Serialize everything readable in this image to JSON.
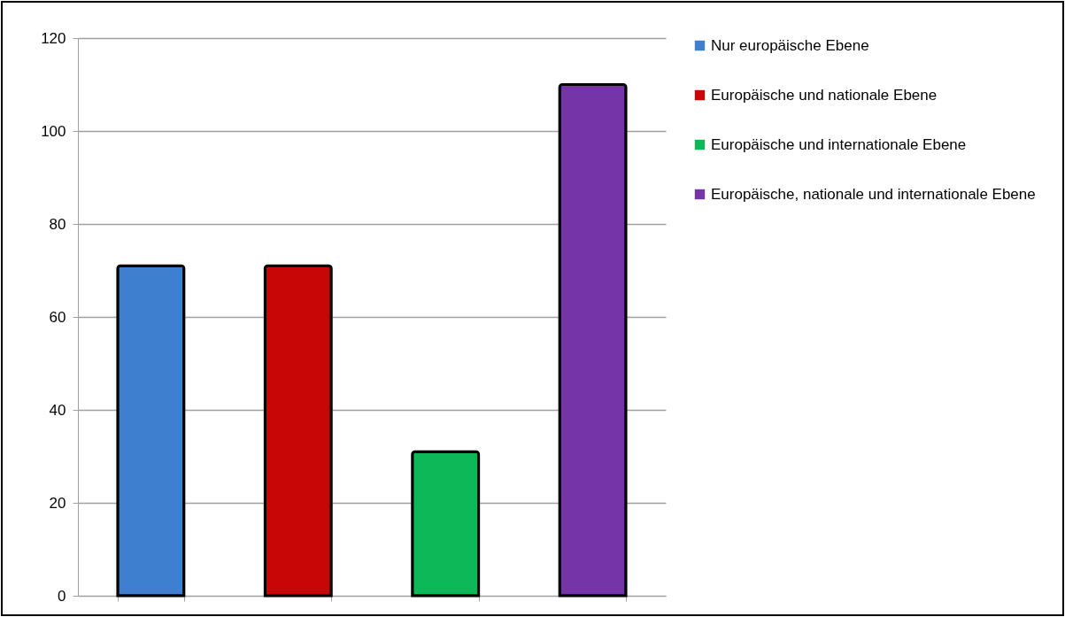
{
  "chart_data": {
    "type": "bar",
    "categories": [
      null,
      null,
      null,
      null
    ],
    "stacked": true,
    "series": [
      {
        "name": "Nur europäische Ebene",
        "color": "#3f7fcf",
        "values": [
          71,
          null,
          null,
          null
        ]
      },
      {
        "name": "Europäische und nationale Ebene",
        "color": "#c80606",
        "values": [
          null,
          71,
          null,
          null
        ]
      },
      {
        "name": "Europäische und internationale Ebene",
        "color": "#0cb858",
        "values": [
          null,
          null,
          31,
          null
        ]
      },
      {
        "name": "Europäische, nationale und internationale Ebene",
        "color": "#7535a8",
        "values": [
          null,
          null,
          null,
          110
        ]
      }
    ],
    "ylim": [
      0,
      120
    ],
    "yticks": [
      0,
      20,
      40,
      60,
      80,
      100,
      120
    ],
    "grid": "y",
    "legend": "right",
    "tick_labels": "y"
  }
}
